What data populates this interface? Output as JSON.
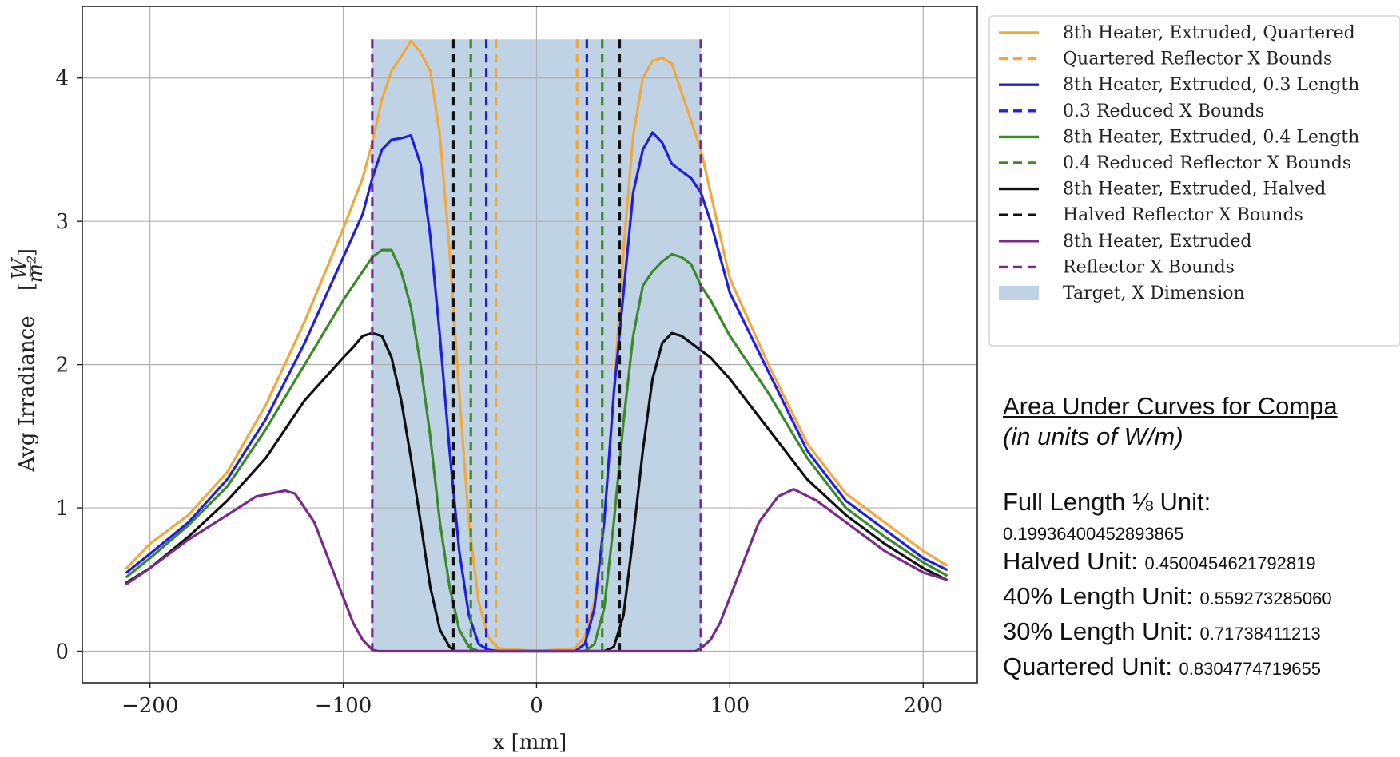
{
  "chart_data": {
    "type": "line",
    "xlabel": "x [mm]",
    "ylabel": "Avg Irradiance",
    "ylabel_unit": "W/m²",
    "xlim": [
      -235,
      228
    ],
    "ylim": [
      -0.22,
      4.5
    ],
    "xticks": [
      -200,
      -100,
      0,
      100,
      200
    ],
    "xtick_labels": [
      "−200",
      "−100",
      "0",
      "100",
      "200"
    ],
    "yticks": [
      0,
      1,
      2,
      3,
      4
    ],
    "ytick_labels": [
      "0",
      "1",
      "2",
      "3",
      "4"
    ],
    "grid": true,
    "legend_position": "outside-right",
    "target_band": {
      "label": "Target, X Dimension",
      "x": [
        -85,
        85
      ],
      "y": [
        0,
        4.27
      ],
      "color": "#c0d3e5"
    },
    "series": [
      {
        "name": "8th Heater, Extruded, Quartered",
        "color": "#f2a83b",
        "style": "solid",
        "x": [
          -212,
          -200,
          -180,
          -160,
          -140,
          -120,
          -100,
          -90,
          -85,
          -80,
          -75,
          -70,
          -65,
          -60,
          -55,
          -50,
          -45,
          -40,
          -35,
          -30,
          -25,
          -20,
          0,
          20,
          25,
          30,
          35,
          40,
          45,
          50,
          55,
          60,
          65,
          70,
          75,
          80,
          85,
          90,
          100,
          120,
          140,
          160,
          180,
          200,
          212
        ],
        "y": [
          0.58,
          0.75,
          0.95,
          1.25,
          1.72,
          2.3,
          2.95,
          3.3,
          3.55,
          3.85,
          4.05,
          4.15,
          4.26,
          4.18,
          4.05,
          3.6,
          2.8,
          1.8,
          0.9,
          0.35,
          0.1,
          0.02,
          0.0,
          0.02,
          0.1,
          0.35,
          0.9,
          1.8,
          2.8,
          3.6,
          4.0,
          4.12,
          4.14,
          4.1,
          3.9,
          3.7,
          3.5,
          3.2,
          2.6,
          2.0,
          1.45,
          1.1,
          0.9,
          0.7,
          0.6
        ]
      },
      {
        "name": "Quartered Reflector X Bounds",
        "color": "#f2a83b",
        "style": "dashed",
        "bounds": [
          -21,
          21
        ]
      },
      {
        "name": "8th Heater, Extruded, 0.3 Length",
        "color": "#1f1fe0",
        "style": "solid",
        "x": [
          -212,
          -200,
          -180,
          -160,
          -140,
          -120,
          -100,
          -90,
          -85,
          -80,
          -75,
          -70,
          -65,
          -60,
          -55,
          -50,
          -45,
          -40,
          -35,
          -30,
          -25,
          -20,
          0,
          20,
          25,
          30,
          35,
          40,
          45,
          50,
          55,
          60,
          65,
          70,
          75,
          80,
          85,
          90,
          100,
          120,
          140,
          160,
          180,
          200,
          212
        ],
        "y": [
          0.55,
          0.68,
          0.9,
          1.2,
          1.62,
          2.15,
          2.75,
          3.05,
          3.3,
          3.5,
          3.57,
          3.58,
          3.6,
          3.4,
          2.9,
          2.2,
          1.4,
          0.7,
          0.25,
          0.05,
          0.01,
          0.0,
          0.0,
          0.0,
          0.05,
          0.3,
          0.9,
          1.8,
          2.5,
          3.2,
          3.5,
          3.62,
          3.55,
          3.4,
          3.35,
          3.3,
          3.2,
          3.0,
          2.5,
          1.95,
          1.4,
          1.05,
          0.85,
          0.65,
          0.57
        ]
      },
      {
        "name": "0.3 Reduced X Bounds",
        "color": "#1f1fe0",
        "style": "dashed",
        "bounds": [
          -26,
          26
        ]
      },
      {
        "name": "8th Heater, Extruded, 0.4 Length",
        "color": "#3a8a2a",
        "style": "solid",
        "x": [
          -212,
          -200,
          -180,
          -160,
          -140,
          -120,
          -100,
          -90,
          -85,
          -80,
          -75,
          -70,
          -65,
          -60,
          -55,
          -50,
          -45,
          -40,
          -35,
          -30,
          -25,
          -20,
          0,
          25,
          30,
          35,
          40,
          45,
          50,
          55,
          60,
          65,
          70,
          75,
          80,
          85,
          90,
          100,
          120,
          140,
          160,
          180,
          200,
          212
        ],
        "y": [
          0.52,
          0.65,
          0.88,
          1.15,
          1.55,
          2.0,
          2.45,
          2.65,
          2.75,
          2.8,
          2.8,
          2.65,
          2.4,
          2.0,
          1.5,
          0.9,
          0.45,
          0.15,
          0.03,
          0.0,
          0.0,
          0.0,
          0.0,
          0.0,
          0.05,
          0.3,
          0.9,
          1.6,
          2.2,
          2.55,
          2.65,
          2.72,
          2.77,
          2.75,
          2.7,
          2.55,
          2.45,
          2.2,
          1.8,
          1.35,
          1.0,
          0.8,
          0.62,
          0.53
        ]
      },
      {
        "name": "0.4 Reduced Reflector X Bounds",
        "color": "#3a8a2a",
        "style": "dashed",
        "bounds": [
          -34,
          34
        ]
      },
      {
        "name": "8th Heater, Extruded, Halved",
        "color": "#111111",
        "style": "solid",
        "x": [
          -212,
          -200,
          -180,
          -160,
          -140,
          -120,
          -100,
          -95,
          -90,
          -85,
          -80,
          -75,
          -70,
          -65,
          -60,
          -55,
          -50,
          -45,
          -42,
          -38,
          -35,
          0,
          35,
          40,
          45,
          50,
          55,
          60,
          65,
          70,
          75,
          80,
          85,
          90,
          100,
          120,
          140,
          160,
          180,
          200,
          212
        ],
        "y": [
          0.48,
          0.58,
          0.8,
          1.05,
          1.35,
          1.75,
          2.05,
          2.12,
          2.2,
          2.22,
          2.2,
          2.05,
          1.75,
          1.35,
          0.9,
          0.45,
          0.15,
          0.03,
          0.0,
          0.0,
          0.0,
          0.0,
          0.0,
          0.03,
          0.25,
          0.8,
          1.4,
          1.9,
          2.15,
          2.22,
          2.2,
          2.15,
          2.1,
          2.05,
          1.9,
          1.55,
          1.2,
          0.95,
          0.75,
          0.58,
          0.5
        ]
      },
      {
        "name": "Halved Reflector X Bounds",
        "color": "#111111",
        "style": "dashed",
        "bounds": [
          -43,
          43
        ]
      },
      {
        "name": "8th Heater, Extruded",
        "color": "#7a2a8a",
        "style": "solid",
        "x": [
          -212,
          -200,
          -180,
          -160,
          -145,
          -130,
          -125,
          -115,
          -105,
          -95,
          -90,
          -85,
          -82,
          -75,
          0,
          75,
          82,
          85,
          90,
          95,
          105,
          115,
          125,
          133,
          145,
          160,
          180,
          200,
          212
        ],
        "y": [
          0.47,
          0.58,
          0.78,
          0.95,
          1.08,
          1.12,
          1.1,
          0.9,
          0.55,
          0.2,
          0.08,
          0.01,
          0.0,
          0.0,
          0.0,
          0.0,
          0.0,
          0.02,
          0.08,
          0.2,
          0.55,
          0.9,
          1.08,
          1.13,
          1.05,
          0.9,
          0.7,
          0.55,
          0.5
        ]
      },
      {
        "name": "Reflector X Bounds",
        "color": "#7a2a8a",
        "style": "dashed",
        "bounds": [
          -85,
          85
        ]
      }
    ]
  },
  "panel": {
    "title": "Area Under Curves for Compa",
    "subtitle": "(in units of W/m)",
    "rows": [
      {
        "label": "Full Length ⅛ Unit:",
        "value": "0.19936400452893865"
      },
      {
        "label": "Halved Unit: ",
        "value": "0.4500454621792819"
      },
      {
        "label": "40% Length Unit: ",
        "value": "0.559273285060"
      },
      {
        "label": "30% Length Unit: ",
        "value": "0.71738411213"
      },
      {
        "label": "Quartered Unit: ",
        "value": "0.8304774719655"
      }
    ]
  }
}
